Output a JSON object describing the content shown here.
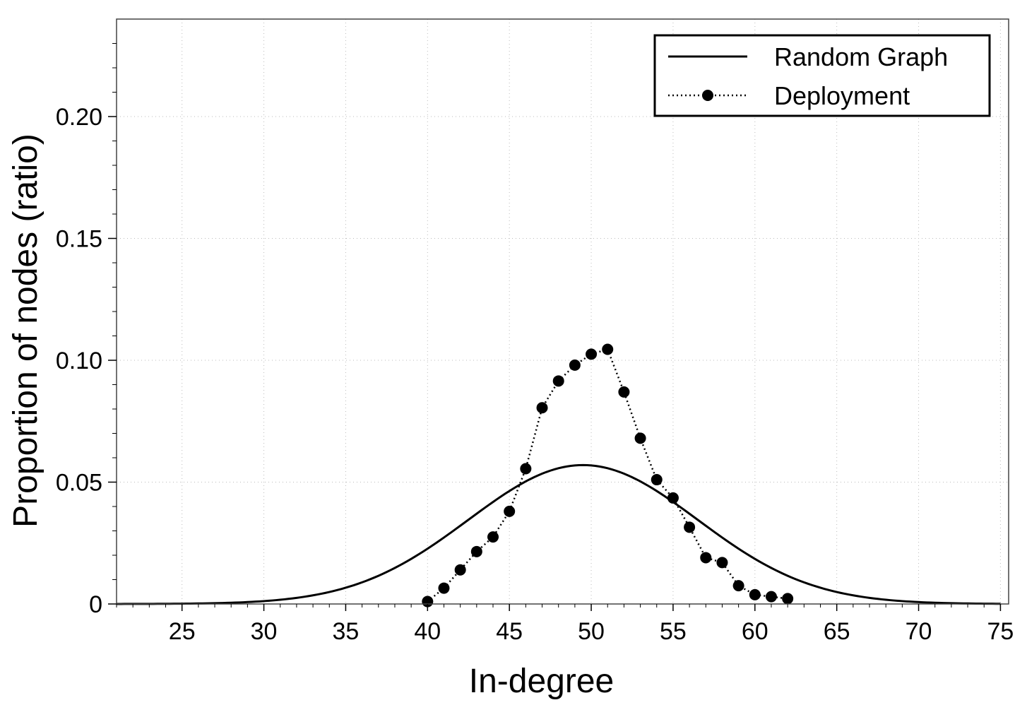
{
  "chart_data": {
    "type": "line",
    "title": "",
    "xlabel": "In-degree",
    "ylabel": "Proportion of nodes (ratio)",
    "xlim": [
      21,
      75.5
    ],
    "ylim": [
      0,
      0.24
    ],
    "x_ticks": [
      25,
      30,
      35,
      40,
      45,
      50,
      55,
      60,
      65,
      70,
      75
    ],
    "x_tick_labels": [
      "25",
      "30",
      "35",
      "40",
      "45",
      "50",
      "55",
      "60",
      "65",
      "70",
      "75"
    ],
    "y_ticks": [
      0,
      0.05,
      0.1,
      0.15,
      0.2
    ],
    "y_tick_labels": [
      "0",
      "0.05",
      "0.10",
      "0.15",
      "0.20"
    ],
    "grid": "dotted",
    "legend_position": "top-right",
    "series": [
      {
        "name": "Random Graph",
        "style": "solid-line",
        "color": "#000000",
        "mean": 49.5,
        "sd": 7.0,
        "x": [
          21,
          22,
          23,
          24,
          25,
          26,
          27,
          28,
          29,
          30,
          31,
          32,
          33,
          34,
          35,
          36,
          37,
          38,
          39,
          40,
          41,
          42,
          43,
          44,
          45,
          46,
          47,
          48,
          49,
          50,
          51,
          52,
          53,
          54,
          55,
          56,
          57,
          58,
          59,
          60,
          61,
          62,
          63,
          64,
          65,
          66,
          67,
          68,
          69,
          70,
          71,
          72,
          73,
          74,
          75
        ],
        "y": [
          0.0,
          0.0,
          0.0001,
          0.0001,
          0.0001,
          0.0002,
          0.0003,
          0.0005,
          0.0008,
          0.0012,
          0.0018,
          0.0026,
          0.0036,
          0.005,
          0.0066,
          0.0087,
          0.0111,
          0.0139,
          0.0171,
          0.0206,
          0.0244,
          0.0284,
          0.0324,
          0.0364,
          0.0403,
          0.0439,
          0.0471,
          0.0497,
          0.0516,
          0.0528,
          0.0532,
          0.0528,
          0.0516,
          0.0497,
          0.0471,
          0.0439,
          0.0403,
          0.0364,
          0.0324,
          0.0284,
          0.0244,
          0.0206,
          0.0171,
          0.0139,
          0.0111,
          0.0087,
          0.0066,
          0.005,
          0.0036,
          0.0026,
          0.0018,
          0.0012,
          0.0008,
          0.0005,
          0.0003
        ]
      },
      {
        "name": "Deployment",
        "style": "dotted-line-with-circles",
        "color": "#000000",
        "x": [
          40,
          41,
          42,
          43,
          44,
          45,
          46,
          47,
          48,
          49,
          50,
          51,
          52,
          53,
          54,
          55,
          56,
          57,
          58,
          59,
          60,
          61,
          62
        ],
        "y": [
          0.001,
          0.0065,
          0.014,
          0.0215,
          0.0275,
          0.038,
          0.0555,
          0.0805,
          0.0915,
          0.098,
          0.1025,
          0.1045,
          0.087,
          0.068,
          0.051,
          0.0435,
          0.0315,
          0.019,
          0.017,
          0.0075,
          0.0038,
          0.003,
          0.0022
        ]
      }
    ]
  }
}
